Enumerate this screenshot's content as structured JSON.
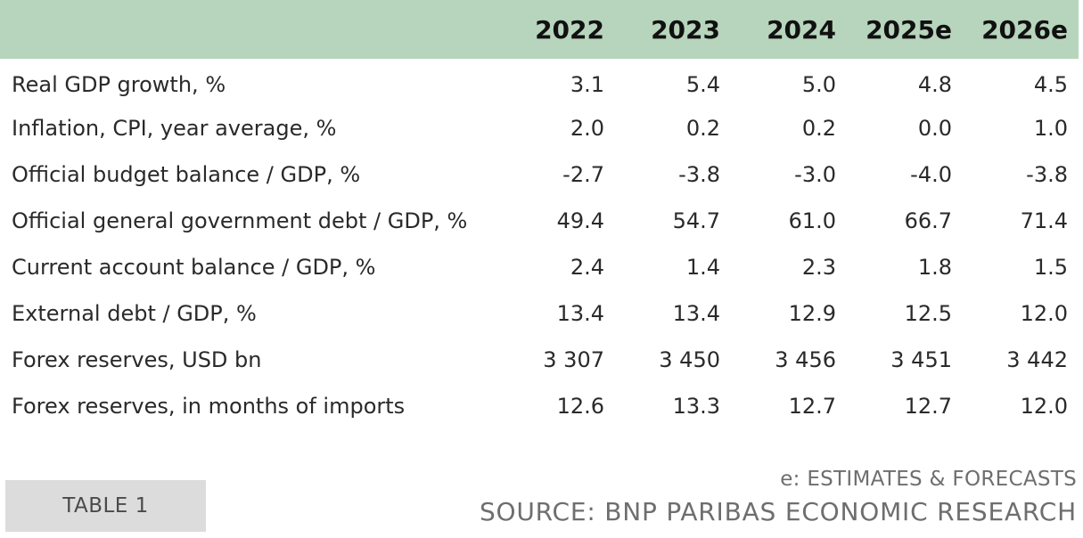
{
  "table": {
    "columns": [
      "2022",
      "2023",
      "2024",
      "2025e",
      "2026e"
    ],
    "rows": [
      {
        "label": "Real GDP growth, %",
        "values": [
          "3.1",
          "5.4",
          "5.0",
          "4.8",
          "4.5"
        ]
      },
      {
        "label": "Inflation, CPI, year average, %",
        "values": [
          "2.0",
          "0.2",
          "0.2",
          "0.0",
          "1.0"
        ]
      },
      {
        "label": "Official budget balance / GDP, %",
        "values": [
          "-2.7",
          "-3.8",
          "-3.0",
          "-4.0",
          "-3.8"
        ]
      },
      {
        "label": "Official general government debt / GDP, %",
        "values": [
          "49.4",
          "54.7",
          "61.0",
          "66.7",
          "71.4"
        ]
      },
      {
        "label": "Current account balance / GDP, %",
        "values": [
          "2.4",
          "1.4",
          "2.3",
          "1.8",
          "1.5"
        ]
      },
      {
        "label": "External debt / GDP, %",
        "values": [
          "13.4",
          "13.4",
          "12.9",
          "12.5",
          "12.0"
        ]
      },
      {
        "label": "Forex reserves, USD bn",
        "values": [
          "3 307",
          "3 450",
          "3 456",
          "3 451",
          "3 442"
        ]
      },
      {
        "label": "Forex reserves, in months of imports",
        "values": [
          "12.6",
          "13.3",
          "12.7",
          "12.7",
          "12.0"
        ]
      }
    ]
  },
  "footer": {
    "badge": "TABLE 1",
    "note": "e: ESTIMATES & FORECASTS",
    "source": "SOURCE: BNP PARIBAS ECONOMIC RESEARCH"
  },
  "colors": {
    "header_bg": "#b7d4bc",
    "badge_bg": "#dcdcdc",
    "footer_text": "#6e6e6e"
  }
}
